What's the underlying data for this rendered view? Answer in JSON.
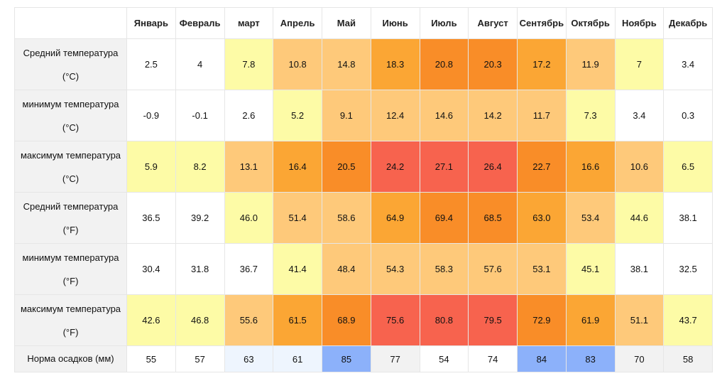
{
  "months": [
    "Январь",
    "Февраль",
    "март",
    "Апрель",
    "Май",
    "Июнь",
    "Июль",
    "Август",
    "Сентябрь",
    "Октябрь",
    "Ноябрь",
    "Декабрь"
  ],
  "rows": [
    {
      "label": "Средний температура (°C)",
      "type": "t",
      "values": [
        "2.5",
        "4",
        "7.8",
        "10.8",
        "14.8",
        "18.3",
        "20.8",
        "20.3",
        "17.2",
        "11.9",
        "7",
        "3.4"
      ],
      "colors": [
        "#ffffff",
        "#ffffff",
        "#fdfba6",
        "#fec97a",
        "#fec97a",
        "#fba634",
        "#f98d28",
        "#f98d28",
        "#fba634",
        "#fec97a",
        "#fdfba6",
        "#ffffff"
      ]
    },
    {
      "label": "минимум температура (°C)",
      "type": "t",
      "values": [
        "-0.9",
        "-0.1",
        "2.6",
        "5.2",
        "9.1",
        "12.4",
        "14.6",
        "14.2",
        "11.7",
        "7.3",
        "3.4",
        "0.3"
      ],
      "colors": [
        "#ffffff",
        "#ffffff",
        "#ffffff",
        "#fdfba6",
        "#fec97a",
        "#fec97a",
        "#fec97a",
        "#fec97a",
        "#fec97a",
        "#fdfba6",
        "#ffffff",
        "#ffffff"
      ]
    },
    {
      "label": "максимум температура (°C)",
      "type": "t",
      "values": [
        "5.9",
        "8.2",
        "13.1",
        "16.4",
        "20.5",
        "24.2",
        "27.1",
        "26.4",
        "22.7",
        "16.6",
        "10.6",
        "6.5"
      ],
      "colors": [
        "#fdfba6",
        "#fdfba6",
        "#fec97a",
        "#fba634",
        "#f98d28",
        "#f7634e",
        "#f7634e",
        "#f7634e",
        "#f98d28",
        "#fba634",
        "#fec97a",
        "#fdfba6"
      ]
    },
    {
      "label": "Средний температура (°F)",
      "type": "t",
      "values": [
        "36.5",
        "39.2",
        "46.0",
        "51.4",
        "58.6",
        "64.9",
        "69.4",
        "68.5",
        "63.0",
        "53.4",
        "44.6",
        "38.1"
      ],
      "colors": [
        "#ffffff",
        "#ffffff",
        "#fdfba6",
        "#fec97a",
        "#fec97a",
        "#fba634",
        "#f98d28",
        "#f98d28",
        "#fba634",
        "#fec97a",
        "#fdfba6",
        "#ffffff"
      ]
    },
    {
      "label": "минимум температура (°F)",
      "type": "t",
      "values": [
        "30.4",
        "31.8",
        "36.7",
        "41.4",
        "48.4",
        "54.3",
        "58.3",
        "57.6",
        "53.1",
        "45.1",
        "38.1",
        "32.5"
      ],
      "colors": [
        "#ffffff",
        "#ffffff",
        "#ffffff",
        "#fdfba6",
        "#fec97a",
        "#fec97a",
        "#fec97a",
        "#fec97a",
        "#fec97a",
        "#fdfba6",
        "#ffffff",
        "#ffffff"
      ]
    },
    {
      "label": "максимум температура (°F)",
      "type": "t",
      "values": [
        "42.6",
        "46.8",
        "55.6",
        "61.5",
        "68.9",
        "75.6",
        "80.8",
        "79.5",
        "72.9",
        "61.9",
        "51.1",
        "43.7"
      ],
      "colors": [
        "#fdfba6",
        "#fdfba6",
        "#fec97a",
        "#fba634",
        "#f98d28",
        "#f7634e",
        "#f7634e",
        "#f7634e",
        "#f98d28",
        "#fba634",
        "#fec97a",
        "#fdfba6"
      ]
    },
    {
      "label": "Норма осадков (мм)",
      "type": "p",
      "values": [
        "55",
        "57",
        "63",
        "61",
        "85",
        "77",
        "54",
        "74",
        "84",
        "83",
        "70",
        "58"
      ],
      "colors": [
        "#ffffff",
        "#ffffff",
        "#eef5fe",
        "#eef5fe",
        "#8cb1fa",
        "#f2f2f2",
        "#ffffff",
        "#ffffff",
        "#8cb1fa",
        "#8cb1fa",
        "#f2f2f2",
        "#f2f2f2"
      ]
    }
  ]
}
